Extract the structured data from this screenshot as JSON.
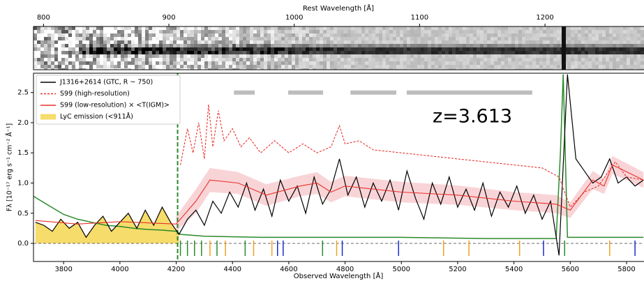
{
  "chart_data": {
    "type": "line",
    "x_label": "Observed Wavelength [Å]",
    "x2_label": "Rest Wavelength [Å]",
    "y_label": "Fλ [10⁻¹⁷ erg s⁻¹ cm⁻² Å⁻¹]",
    "annotation": "z=3.613",
    "xlim": [
      3693,
      5862
    ],
    "ylim": [
      -0.3,
      2.82
    ],
    "xticks": [
      3800,
      4000,
      4200,
      4400,
      4600,
      4800,
      5000,
      5200,
      5400,
      5600,
      5800
    ],
    "yticks": [
      {
        "value": 0,
        "label": "0.0"
      },
      0.5,
      {
        "value": 1,
        "label": "1.0"
      },
      1.5,
      {
        "value": 2,
        "label": "2.0"
      },
      2.5
    ],
    "x2lim": [
      792,
      1279
    ],
    "x2ticks": [
      800,
      900,
      1000,
      1100,
      1200
    ],
    "legend": "upper left",
    "series": [
      {
        "name": "J1316+2614 (GTC, R ~ 750)",
        "color": "#000000",
        "kind": "line",
        "dash": false,
        "x": [
          3700,
          3730,
          3760,
          3790,
          3820,
          3850,
          3880,
          3910,
          3940,
          3970,
          4000,
          4030,
          4060,
          4090,
          4120,
          4150,
          4180,
          4210,
          4240,
          4270,
          4300,
          4330,
          4360,
          4390,
          4420,
          4450,
          4480,
          4510,
          4540,
          4570,
          4600,
          4630,
          4660,
          4690,
          4720,
          4750,
          4780,
          4810,
          4840,
          4870,
          4900,
          4930,
          4960,
          4990,
          5020,
          5050,
          5080,
          5110,
          5140,
          5170,
          5200,
          5230,
          5260,
          5290,
          5320,
          5350,
          5380,
          5410,
          5440,
          5470,
          5500,
          5530,
          5560,
          5590,
          5620,
          5650,
          5680,
          5710,
          5740,
          5770,
          5800,
          5830,
          5860
        ],
        "values": [
          0.35,
          0.3,
          0.2,
          0.4,
          0.25,
          0.35,
          0.1,
          0.3,
          0.45,
          0.2,
          0.35,
          0.5,
          0.25,
          0.55,
          0.3,
          0.6,
          0.35,
          0.15,
          0.4,
          0.55,
          0.3,
          0.7,
          0.5,
          0.85,
          0.6,
          1.0,
          0.55,
          0.9,
          0.45,
          1.05,
          0.7,
          0.95,
          0.5,
          1.1,
          0.65,
          0.9,
          1.4,
          0.8,
          1.1,
          0.6,
          1.0,
          0.7,
          1.05,
          0.55,
          1.2,
          0.75,
          0.4,
          1.0,
          0.65,
          1.1,
          0.6,
          0.9,
          0.55,
          1.0,
          0.45,
          0.85,
          0.6,
          0.95,
          0.5,
          0.8,
          0.4,
          0.7,
          -0.2,
          2.8,
          1.4,
          1.2,
          1.0,
          1.1,
          1.4,
          1.0,
          1.1,
          0.95,
          1.05
        ]
      },
      {
        "name": "S99 (high-resolution)",
        "color": "#e8312a",
        "kind": "line",
        "dash": true,
        "x": [
          4215,
          4240,
          4260,
          4280,
          4300,
          4315,
          4330,
          4350,
          4370,
          4400,
          4430,
          4460,
          4500,
          4550,
          4600,
          4650,
          4700,
          4750,
          4780,
          4800,
          4850,
          4900,
          5000,
          5100,
          5200,
          5300,
          5400,
          5500,
          5560,
          5600,
          5650,
          5700,
          5760,
          5800,
          5860
        ],
        "values": [
          1.3,
          1.9,
          1.5,
          2.0,
          1.4,
          2.3,
          1.6,
          2.2,
          1.7,
          1.9,
          1.6,
          1.75,
          1.5,
          1.7,
          1.5,
          1.65,
          1.5,
          1.6,
          1.95,
          1.65,
          1.7,
          1.55,
          1.5,
          1.45,
          1.4,
          1.35,
          1.3,
          1.25,
          1.1,
          0.6,
          0.85,
          0.95,
          1.35,
          1.1,
          1.05
        ]
      },
      {
        "name": "S99 (low-resolution) × <T(IGM)>",
        "color": "#e8312a",
        "kind": "line",
        "dash": false,
        "x": [
          3700,
          3850,
          4000,
          4200,
          4270,
          4320,
          4420,
          4520,
          4640,
          4700,
          4750,
          4800,
          4900,
          5000,
          5200,
          5400,
          5550,
          5600,
          5680,
          5720,
          5750,
          5860
        ],
        "values": [
          0.38,
          0.32,
          0.36,
          0.32,
          0.7,
          1.05,
          1.0,
          0.8,
          0.95,
          1.0,
          0.85,
          0.95,
          0.9,
          0.85,
          0.8,
          0.7,
          0.65,
          0.55,
          1.05,
          0.95,
          1.3,
          1.05
        ]
      },
      {
        "name": "LyC emission (<911Å)",
        "color": "#f6dc6a",
        "kind": "area",
        "x": [
          3700,
          3730,
          3760,
          3790,
          3820,
          3850,
          3880,
          3910,
          3940,
          3970,
          4000,
          4030,
          4060,
          4090,
          4120,
          4150,
          4180,
          4210
        ],
        "values": [
          0.35,
          0.3,
          0.2,
          0.4,
          0.25,
          0.35,
          0.1,
          0.3,
          0.45,
          0.2,
          0.35,
          0.5,
          0.25,
          0.55,
          0.3,
          0.6,
          0.35,
          0.15
        ]
      }
    ],
    "band": {
      "color": "#f5b8bd",
      "x": [
        4200,
        4270,
        4320,
        4420,
        4520,
        4640,
        4700,
        4750,
        4800,
        4900,
        5000,
        5200,
        5400,
        5550,
        5600,
        5680,
        5720,
        5750,
        5860
      ],
      "low": [
        0.2,
        0.5,
        0.85,
        0.82,
        0.62,
        0.78,
        0.82,
        0.68,
        0.78,
        0.73,
        0.68,
        0.64,
        0.55,
        0.5,
        0.42,
        0.9,
        0.82,
        1.15,
        0.92
      ],
      "high": [
        0.45,
        0.9,
        1.25,
        1.18,
        0.98,
        1.12,
        1.18,
        1.02,
        1.12,
        1.07,
        1.02,
        0.96,
        0.85,
        0.8,
        0.68,
        1.2,
        1.08,
        1.45,
        1.18
      ]
    },
    "error": {
      "color": "#2a8a2a",
      "x": [
        3693,
        3750,
        3800,
        3850,
        3900,
        3950,
        4000,
        4050,
        4100,
        4150,
        4200,
        4215,
        4300,
        4500,
        4800,
        5000,
        5300,
        5550,
        5565,
        5575,
        5590,
        5700,
        5860
      ],
      "values": [
        0.78,
        0.62,
        0.48,
        0.4,
        0.35,
        0.3,
        0.28,
        0.25,
        0.23,
        0.22,
        0.2,
        0.15,
        0.12,
        0.1,
        0.1,
        0.1,
        0.08,
        0.08,
        1.5,
        2.8,
        0.1,
        0.1,
        0.1
      ]
    },
    "lyman_limit": 4205,
    "windows": [
      [
        4405,
        4479
      ],
      [
        4598,
        4722
      ],
      [
        4819,
        4982
      ],
      [
        5019,
        5465
      ]
    ],
    "absorption_lines": [
      {
        "x": 4215,
        "color": "#2a8a2a"
      },
      {
        "x": 4240,
        "color": "#2a8a2a"
      },
      {
        "x": 4265,
        "color": "#2a8a2a"
      },
      {
        "x": 4290,
        "color": "#2a8a2a"
      },
      {
        "x": 4320,
        "color": "#f0a020"
      },
      {
        "x": 4345,
        "color": "#2a8a2a"
      },
      {
        "x": 4375,
        "color": "#f0a020"
      },
      {
        "x": 4445,
        "color": "#2a8a2a"
      },
      {
        "x": 4475,
        "color": "#f0a020"
      },
      {
        "x": 4540,
        "color": "#f0a020"
      },
      {
        "x": 4560,
        "color": "#1a2ad0"
      },
      {
        "x": 4580,
        "color": "#1a2ad0"
      },
      {
        "x": 4720,
        "color": "#2a8a2a"
      },
      {
        "x": 4770,
        "color": "#f0a020"
      },
      {
        "x": 4790,
        "color": "#1a2ad0"
      },
      {
        "x": 4990,
        "color": "#1a2ad0"
      },
      {
        "x": 5150,
        "color": "#f0a020"
      },
      {
        "x": 5240,
        "color": "#f0a020"
      },
      {
        "x": 5420,
        "color": "#f0a020"
      },
      {
        "x": 5505,
        "color": "#1a2ad0"
      },
      {
        "x": 5580,
        "color": "#2a8a2a"
      },
      {
        "x": 5740,
        "color": "#f0a020"
      },
      {
        "x": 5830,
        "color": "#1a2ad0"
      }
    ]
  }
}
